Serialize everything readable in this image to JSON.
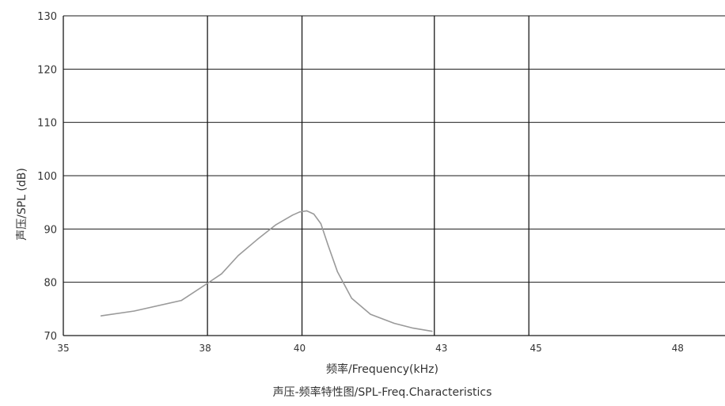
{
  "chart_data": {
    "type": "line",
    "xlabel": "频率/Frequency(kHz)",
    "ylabel": "声压/SPL (dB)",
    "title": "声压-频率特性图/SPL-Freq.Characteristics",
    "x_ticks": [
      {
        "label": "35",
        "value": 35
      },
      {
        "label": "38",
        "value": 38
      },
      {
        "label": "40",
        "value": 40
      },
      {
        "label": "43",
        "value": 43
      },
      {
        "label": "45",
        "value": 45
      },
      {
        "label": "48",
        "value": 48
      }
    ],
    "y_ticks": [
      "70",
      "80",
      "90",
      "100",
      "110",
      "120",
      "130"
    ],
    "xlim": [
      35,
      49
    ],
    "ylim": [
      70,
      130
    ],
    "vertical_grid_x": [
      38.05,
      40.05,
      42.85,
      44.85
    ],
    "grid": true,
    "colors": {
      "curve": "#9a9a9a",
      "grid": "#1a1a1a"
    },
    "series": [
      {
        "x": [
          35.8,
          36.5,
          37.5,
          38.0,
          38.35,
          38.7,
          39.1,
          39.5,
          39.85,
          40.0,
          40.15,
          40.3,
          40.45,
          40.6,
          40.8,
          41.1,
          41.5,
          42.0,
          42.4,
          42.8
        ],
        "y": [
          73.7,
          74.6,
          76.6,
          79.5,
          81.6,
          85.0,
          88.0,
          90.8,
          92.6,
          93.2,
          93.4,
          92.8,
          91.0,
          87.0,
          82.0,
          77.0,
          74.0,
          72.3,
          71.4,
          70.8
        ]
      }
    ]
  }
}
